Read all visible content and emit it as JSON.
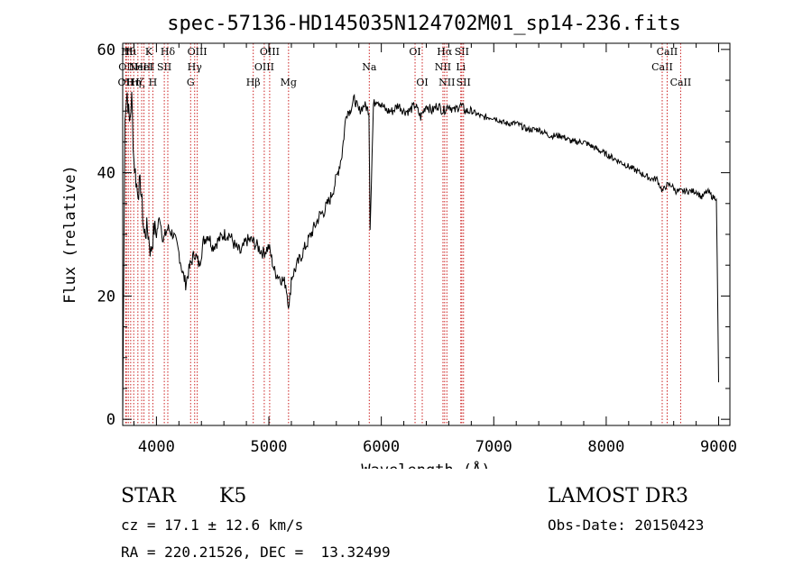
{
  "chart_data": {
    "type": "line",
    "title": "spec-57136-HD145035N124702M01_sp14-236.fits",
    "xlabel": "Wavelength (Å)",
    "ylabel": "Flux (relative)",
    "xlim": [
      3700,
      9100
    ],
    "ylim": [
      -1,
      61
    ],
    "xticks": [
      4000,
      5000,
      6000,
      7000,
      8000,
      9000
    ],
    "yticks": [
      0,
      20,
      40,
      60
    ],
    "grid": false,
    "series": [
      {
        "x": [
          3700,
          3720,
          3740,
          3760,
          3780,
          3800,
          3830,
          3860,
          3890,
          3920,
          3950,
          3980,
          4000,
          4030,
          4060,
          4100,
          4150,
          4200,
          4230,
          4260,
          4300,
          4340,
          4380,
          4420,
          4460,
          4500,
          4550,
          4600,
          4650,
          4700,
          4750,
          4800,
          4850,
          4900,
          4950,
          5000,
          5050,
          5100,
          5150,
          5180,
          5200,
          5250,
          5300,
          5350,
          5400,
          5450,
          5500,
          5550,
          5600,
          5650,
          5690,
          5720,
          5760,
          5800,
          5850,
          5890,
          5900,
          5930,
          5960,
          6000,
          6050,
          6100,
          6150,
          6200,
          6250,
          6300,
          6350,
          6400,
          6450,
          6500,
          6550,
          6600,
          6650,
          6700,
          6750,
          6800,
          6900,
          7000,
          7100,
          7200,
          7300,
          7400,
          7500,
          7600,
          7700,
          7800,
          7900,
          8000,
          8100,
          8200,
          8300,
          8400,
          8450,
          8500,
          8540,
          8580,
          8620,
          8660,
          8700,
          8750,
          8800,
          8850,
          8900,
          8950,
          8980,
          9000
        ],
        "y": [
          0,
          50,
          53,
          48,
          52,
          42,
          37,
          38,
          30,
          31,
          27,
          31,
          30,
          33,
          29,
          31,
          30,
          27,
          24,
          22,
          25,
          27,
          25,
          29,
          30,
          28,
          29,
          30,
          30,
          28,
          27,
          29,
          29,
          28,
          27,
          28,
          24,
          23,
          22,
          18,
          23,
          25,
          27,
          29,
          31,
          33,
          34,
          36,
          39,
          43,
          50,
          50,
          52,
          50,
          51,
          50,
          31,
          51,
          52,
          51,
          50,
          50,
          51,
          50,
          50,
          51,
          49,
          51,
          50,
          51,
          50,
          51,
          50,
          51,
          50,
          50,
          49,
          49,
          48,
          48,
          47,
          47,
          46,
          46,
          45,
          45,
          44,
          43,
          42,
          41,
          40,
          39,
          39,
          37,
          38,
          38,
          37,
          37,
          37,
          37,
          37,
          36,
          37,
          36,
          36,
          6
        ]
      }
    ],
    "lines": [
      {
        "x": 3727,
        "labels": [
          "OII"
        ],
        "row": 2
      },
      {
        "x": 3733,
        "labels": [
          "OII"
        ],
        "row": 1
      },
      {
        "x": 3750,
        "labels": [
          "Hθ"
        ],
        "row": 0
      },
      {
        "x": 3771,
        "labels": [
          "Hι"
        ],
        "row": 0
      },
      {
        "x": 3798,
        "labels": [
          "Hη"
        ],
        "row": 2
      },
      {
        "x": 3835,
        "labels": [
          "Hζ"
        ],
        "row": 2
      },
      {
        "x": 3869,
        "labels": [
          "NeIII"
        ],
        "row": 1
      },
      {
        "x": 3889,
        "labels": [
          "HeI"
        ],
        "row": 1
      },
      {
        "x": 3933,
        "labels": [
          "K"
        ],
        "row": 0
      },
      {
        "x": 3968,
        "labels": [
          "H"
        ],
        "row": 2
      },
      {
        "x": 4070,
        "labels": [
          "SII"
        ],
        "row": 1
      },
      {
        "x": 4101,
        "labels": [
          "Hδ"
        ],
        "row": 0
      },
      {
        "x": 4304,
        "labels": [
          "G"
        ],
        "row": 2
      },
      {
        "x": 4340,
        "labels": [
          "Hγ"
        ],
        "row": 1
      },
      {
        "x": 4363,
        "labels": [
          "OIII"
        ],
        "row": 0
      },
      {
        "x": 4861,
        "labels": [
          "Hβ"
        ],
        "row": 2
      },
      {
        "x": 4959,
        "labels": [
          "OIII"
        ],
        "row": 1
      },
      {
        "x": 5007,
        "labels": [
          "OIII"
        ],
        "row": 0
      },
      {
        "x": 5175,
        "labels": [
          "Mg"
        ],
        "row": 2
      },
      {
        "x": 5893,
        "labels": [
          "Na"
        ],
        "row": 1
      },
      {
        "x": 6300,
        "labels": [
          "OI"
        ],
        "row": 0
      },
      {
        "x": 6364,
        "labels": [
          "OI"
        ],
        "row": 2
      },
      {
        "x": 6548,
        "labels": [
          "NII"
        ],
        "row": 1
      },
      {
        "x": 6563,
        "labels": [
          "Hα"
        ],
        "row": 0
      },
      {
        "x": 6583,
        "labels": [
          "NII"
        ],
        "row": 2
      },
      {
        "x": 6707,
        "labels": [
          "Li"
        ],
        "row": 1
      },
      {
        "x": 6716,
        "labels": [
          "SII"
        ],
        "row": 0
      },
      {
        "x": 6731,
        "labels": [
          "SII"
        ],
        "row": 2
      },
      {
        "x": 8498,
        "labels": [
          "CaII"
        ],
        "row": 1
      },
      {
        "x": 8542,
        "labels": [
          "CaII"
        ],
        "row": 0
      },
      {
        "x": 8662,
        "labels": [
          "CaII"
        ],
        "row": 2
      }
    ]
  },
  "info": {
    "class": "STAR",
    "subclass": "K5",
    "survey": "LAMOST DR3",
    "cz": "cz = 17.1 ± 12.6 km/s",
    "obs_date": "Obs-Date: 20150423",
    "coords": "RA = 220.21526, DEC =  13.32499"
  }
}
